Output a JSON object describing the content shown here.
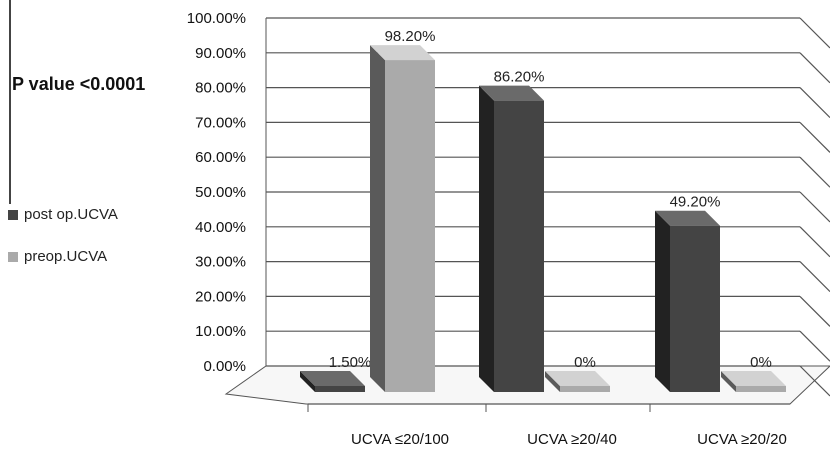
{
  "annotation": "P value <0.0001",
  "colors": {
    "post": "#444444",
    "pre": "#aaaaaa",
    "grid": "#555555"
  },
  "legend": [
    {
      "label": "post op.UCVA",
      "color": "#444444"
    },
    {
      "label": "preop.UCVA",
      "color": "#aaaaaa"
    }
  ],
  "chart_data": {
    "type": "bar",
    "title": "",
    "xlabel": "",
    "ylabel": "",
    "categories": [
      "UCVA ≤20/100",
      "UCVA ≥20/40",
      "UCVA ≥20/20"
    ],
    "series": [
      {
        "name": "post op.UCVA",
        "values": [
          1.5,
          86.2,
          49.2
        ],
        "labels": [
          "1.50%",
          "86.20%",
          "49.20%"
        ]
      },
      {
        "name": "preop.UCVA",
        "values": [
          98.2,
          0,
          0
        ],
        "labels": [
          "98.20%",
          "0%",
          "0%"
        ]
      }
    ],
    "yticks": [
      "0.00%",
      "10.00%",
      "20.00%",
      "30.00%",
      "40.00%",
      "50.00%",
      "60.00%",
      "70.00%",
      "80.00%",
      "90.00%",
      "100.00%"
    ],
    "ylim": [
      0,
      100
    ],
    "grid": true,
    "legend_position": "left"
  }
}
